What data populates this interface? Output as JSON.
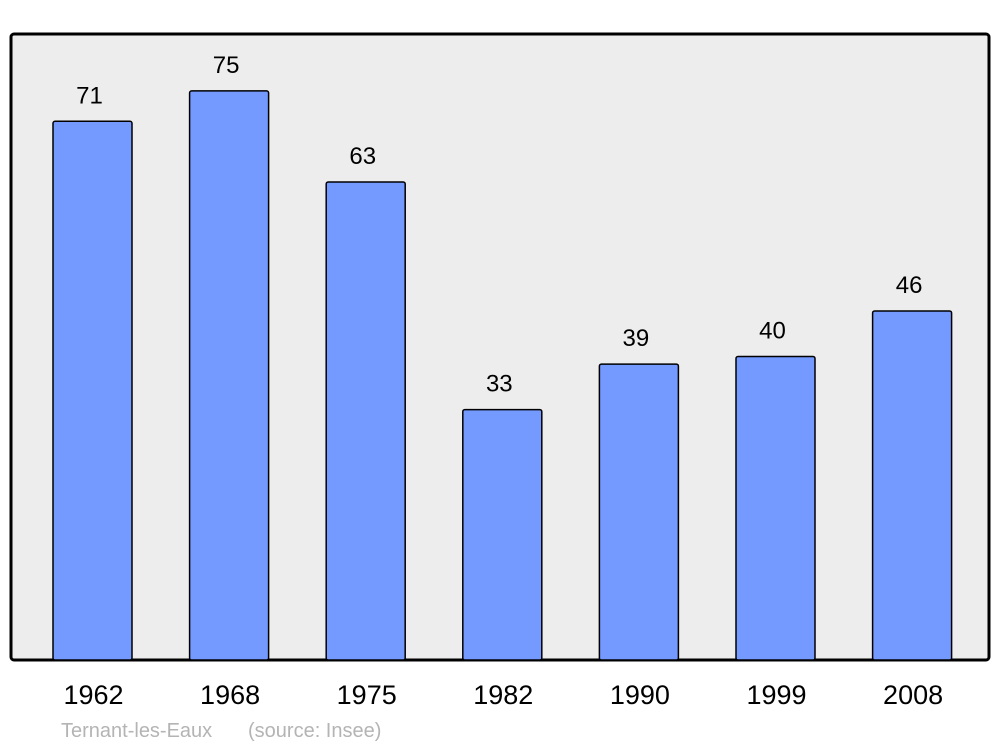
{
  "chart_data": {
    "type": "bar",
    "categories": [
      "1962",
      "1968",
      "1975",
      "1982",
      "1990",
      "1999",
      "2008"
    ],
    "values": [
      71,
      75,
      63,
      33,
      39,
      40,
      46
    ],
    "title": "",
    "xlabel": "",
    "ylabel": "",
    "ylim": [
      0,
      82.5
    ],
    "grid": false,
    "data_labels": true,
    "footer": {
      "place": "Ternant-les-Eaux",
      "source": "(source: Insee)"
    },
    "colors": {
      "bar": "#7499ff",
      "plot_background": "#ededed",
      "footer_text": "#b4b4b4"
    }
  }
}
